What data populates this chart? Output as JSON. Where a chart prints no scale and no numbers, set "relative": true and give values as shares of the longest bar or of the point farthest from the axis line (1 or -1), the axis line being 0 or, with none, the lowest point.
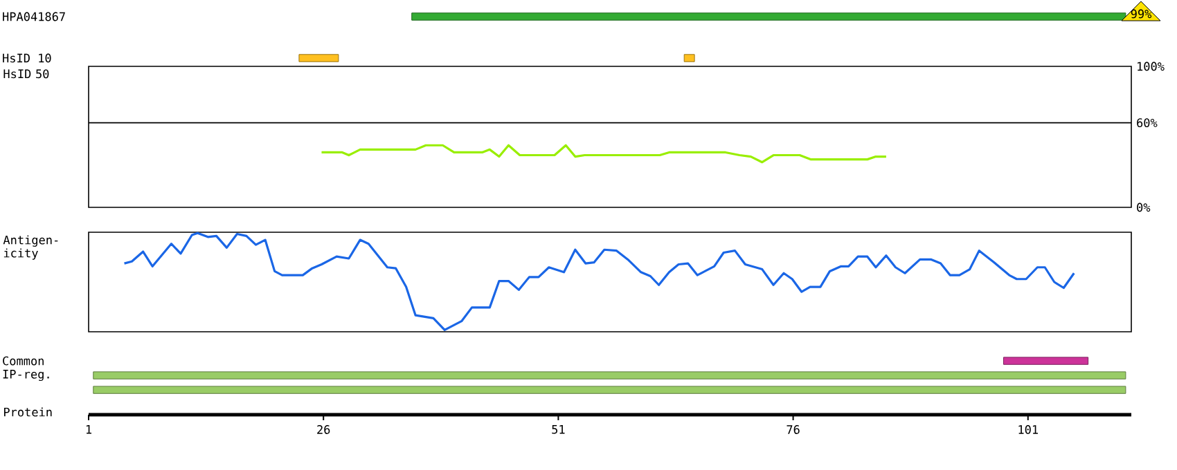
{
  "chart_data": [
    {
      "type": "bar",
      "orientation": "horizontal",
      "categories": [
        "HPA041867",
        "HsID 10"
      ],
      "xlim": [
        1,
        112
      ],
      "tick_labels": "y",
      "annotations": [
        "99%"
      ],
      "series": [
        {
          "color": "#33aa33",
          "base": [
            35.4,
            null
          ],
          "values": [
            76.0,
            null
          ]
        },
        {
          "color": "#ffc020",
          "base": [
            null,
            23.4
          ],
          "values": [
            null,
            4.2
          ]
        },
        {
          "color": "#ffc020",
          "base": [
            null,
            64.4
          ],
          "values": [
            null,
            1.1
          ]
        }
      ]
    },
    {
      "type": "line",
      "ylabel": "HsID 50",
      "xlim": [
        1,
        112
      ],
      "ylim": [
        0,
        100
      ],
      "yticks": [
        {
          "value": 0,
          "label": "0%"
        },
        {
          "value": 60,
          "label": "60%"
        },
        {
          "value": 100,
          "label": "100%"
        }
      ],
      "tick_labels": "y",
      "ref_lines": [
        {
          "axis": "y",
          "value": 60
        }
      ],
      "series": [
        {
          "color": "#99ee00",
          "x": [
            25.8,
            28.0,
            28.7,
            29.9,
            35.8,
            36.9,
            38.7,
            39.9,
            42.9,
            43.7,
            44.7,
            45.7,
            46.9,
            50.6,
            51.8,
            52.8,
            53.8,
            61.8,
            62.8,
            68.8,
            70.3,
            71.5,
            72.7,
            73.9,
            76.7,
            77.9,
            83.9,
            84.8,
            85.9
          ],
          "values": [
            39,
            39,
            37,
            41,
            41,
            44,
            44,
            39,
            39,
            41,
            36,
            44,
            37,
            37,
            44,
            36,
            37,
            37,
            39,
            39,
            37,
            36,
            32,
            37,
            37,
            34,
            34,
            36,
            36
          ]
        }
      ]
    },
    {
      "type": "line",
      "relative": true,
      "ylabel": "Antigen-icity",
      "xlim": [
        1,
        112
      ],
      "tick_labels": false,
      "series": [
        {
          "color": "#1a66e6",
          "x": [
            4.8,
            5.6,
            6.8,
            7.8,
            9.8,
            10.8,
            12.0,
            12.6,
            13.7,
            14.6,
            15.7,
            16.8,
            17.8,
            18.8,
            19.8,
            20.8,
            21.6,
            23.8,
            24.8,
            25.8,
            27.4,
            28.7,
            29.9,
            30.8,
            32.8,
            33.7,
            34.8,
            35.8,
            37.7,
            38.9,
            40.7,
            41.8,
            43.7,
            44.7,
            45.7,
            46.8,
            47.9,
            48.9,
            50.0,
            51.6,
            52.8,
            53.9,
            54.8,
            55.9,
            57.2,
            58.4,
            59.8,
            60.8,
            61.7,
            62.8,
            63.8,
            64.8,
            65.8,
            67.6,
            68.6,
            69.8,
            70.9,
            72.7,
            73.9,
            75.0,
            75.9,
            76.9,
            77.8,
            78.9,
            79.9,
            81.1,
            81.9,
            82.9,
            83.9,
            84.8,
            85.9,
            86.9,
            87.9,
            89.5,
            90.7,
            91.7,
            92.7,
            93.7,
            94.8,
            95.8,
            97.4,
            99.0,
            99.8,
            100.8,
            102.0,
            102.8,
            103.8,
            104.8,
            105.9
          ],
          "values": [
            0.69,
            0.71,
            0.81,
            0.66,
            0.89,
            0.79,
            0.98,
            1.0,
            0.96,
            0.97,
            0.85,
            0.99,
            0.97,
            0.88,
            0.93,
            0.61,
            0.57,
            0.57,
            0.64,
            0.68,
            0.76,
            0.74,
            0.93,
            0.89,
            0.65,
            0.64,
            0.45,
            0.16,
            0.13,
            0.01,
            0.1,
            0.24,
            0.24,
            0.51,
            0.51,
            0.42,
            0.55,
            0.55,
            0.65,
            0.6,
            0.83,
            0.69,
            0.7,
            0.83,
            0.82,
            0.73,
            0.6,
            0.56,
            0.47,
            0.6,
            0.68,
            0.69,
            0.57,
            0.66,
            0.8,
            0.82,
            0.68,
            0.63,
            0.47,
            0.59,
            0.53,
            0.4,
            0.45,
            0.45,
            0.61,
            0.66,
            0.66,
            0.76,
            0.76,
            0.65,
            0.77,
            0.65,
            0.59,
            0.73,
            0.73,
            0.69,
            0.57,
            0.57,
            0.63,
            0.82,
            0.7,
            0.57,
            0.53,
            0.53,
            0.65,
            0.65,
            0.5,
            0.44,
            0.59
          ]
        }
      ]
    },
    {
      "type": "bar",
      "orientation": "horizontal",
      "categories": [
        "Common",
        "IP-reg.",
        null
      ],
      "xlim": [
        1,
        112
      ],
      "xticks": [
        1,
        26,
        51,
        76,
        101
      ],
      "xlabel": "Protein",
      "series": [
        {
          "color": "#cc3399",
          "base": [
            98.4,
            null,
            null
          ],
          "values": [
            9.0,
            null,
            null
          ]
        },
        {
          "color": "#99cc66",
          "base": [
            null,
            1.5,
            1.5
          ],
          "values": [
            null,
            109.9,
            109.9
          ]
        }
      ]
    }
  ]
}
